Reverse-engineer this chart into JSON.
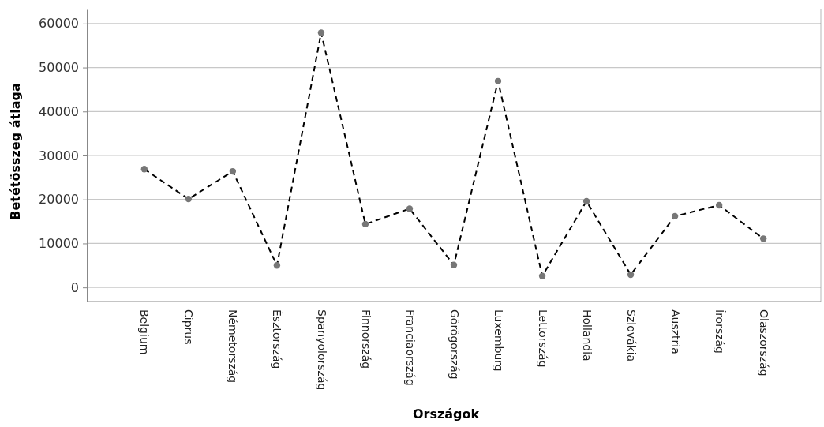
{
  "chart_data": {
    "type": "line",
    "xlabel": "Országok",
    "ylabel": "Betétösszeg átlaga",
    "categories": [
      "Belgium",
      "Ciprus",
      "Németország",
      "Észtország",
      "Spanyolország",
      "Finnország",
      "Franciaország",
      "Görögország",
      "Luxemburg",
      "Lettország",
      "Hollandia",
      "Szlovákia",
      "Ausztria",
      "Írország",
      "Olaszország"
    ],
    "series": [
      {
        "color": "#000000",
        "values": [
          26900,
          20100,
          26400,
          5000,
          57900,
          14400,
          17900,
          5100,
          46900,
          2600,
          19600,
          2900,
          16200,
          18700,
          11100
        ]
      }
    ],
    "ylim": [
      -3200,
      63200
    ],
    "yticks": [
      0,
      10000,
      20000,
      30000,
      40000,
      50000,
      60000
    ],
    "grid": "y",
    "marker": "circle",
    "line_style": "dashed"
  }
}
